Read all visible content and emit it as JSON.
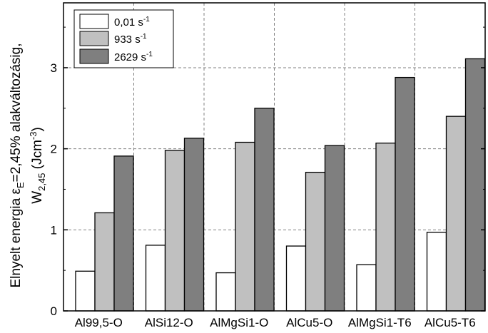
{
  "chart_data": {
    "type": "bar",
    "categories": [
      "Al99,5-O",
      "AlSi12-O",
      "AlMgSi1-O",
      "AlCu5-O",
      "AlMgSi1-T6",
      "AlCu5-T6"
    ],
    "series": [
      {
        "name": "0,01 s-1",
        "name_parts": [
          "0,01 s",
          "-1"
        ],
        "color": "#ffffff",
        "values": [
          0.49,
          0.81,
          0.47,
          0.8,
          0.57,
          0.97
        ]
      },
      {
        "name": "933 s-1",
        "name_parts": [
          "933 s",
          "-1"
        ],
        "color": "#c0c0c0",
        "values": [
          1.21,
          1.98,
          2.08,
          1.71,
          2.07,
          2.4
        ]
      },
      {
        "name": "2629 s-1",
        "name_parts": [
          "2629 s",
          "-1"
        ],
        "color": "#7f7f7f",
        "values": [
          1.91,
          2.13,
          2.5,
          2.04,
          2.88,
          3.11
        ]
      }
    ],
    "ylim": [
      0,
      3.8
    ],
    "yticks": [
      0,
      1,
      2,
      3
    ],
    "ytick_labels": [
      "0",
      "1",
      "2",
      "3"
    ],
    "ylabel_line1": {
      "before": "Elnyelt energia ε",
      "sub": "E",
      "after": "=2,45% alakváltozásig,"
    },
    "ylabel_line2": {
      "before": "W",
      "sub": "2,45",
      "mid": " (Jcm",
      "sup": "-3",
      "after": ")"
    },
    "grid": true,
    "legend_position": "top-left"
  }
}
